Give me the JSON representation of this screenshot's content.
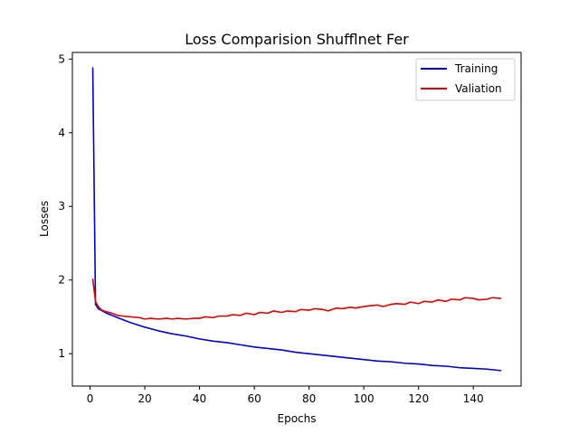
{
  "chart_data": {
    "type": "line",
    "title": "Loss Comparision Shufflnet Fer",
    "xlabel": "Epochs",
    "ylabel": "Losses",
    "xlim": [
      -6.45,
      157.45
    ],
    "ylim": [
      0.56,
      5.09
    ],
    "xticks": [
      0,
      20,
      40,
      60,
      80,
      100,
      120,
      140
    ],
    "yticks": [
      1,
      2,
      3,
      4,
      5
    ],
    "grid": false,
    "legend_position": "top-right",
    "series": [
      {
        "name": "Training",
        "color": "#0000cc",
        "x": [
          1,
          2,
          3,
          4,
          5,
          6,
          8,
          10,
          15,
          20,
          25,
          30,
          35,
          40,
          45,
          50,
          55,
          60,
          65,
          70,
          75,
          80,
          85,
          90,
          95,
          100,
          105,
          110,
          115,
          120,
          125,
          130,
          135,
          140,
          145,
          150
        ],
        "y": [
          4.88,
          1.67,
          1.61,
          1.59,
          1.57,
          1.55,
          1.52,
          1.49,
          1.42,
          1.36,
          1.31,
          1.27,
          1.24,
          1.2,
          1.17,
          1.15,
          1.12,
          1.09,
          1.07,
          1.05,
          1.02,
          1.0,
          0.98,
          0.96,
          0.94,
          0.92,
          0.9,
          0.89,
          0.87,
          0.86,
          0.84,
          0.83,
          0.81,
          0.8,
          0.79,
          0.77
        ]
      },
      {
        "name": "Valiation",
        "color": "#dd0000",
        "x": [
          1,
          2,
          3,
          4,
          5,
          6,
          8,
          10,
          12,
          15,
          18,
          20,
          22,
          25,
          28,
          30,
          32,
          35,
          38,
          40,
          42,
          45,
          47,
          50,
          52,
          55,
          57,
          60,
          62,
          65,
          67,
          70,
          72,
          75,
          77,
          80,
          82,
          85,
          87,
          90,
          92,
          95,
          97,
          100,
          102,
          105,
          107,
          110,
          112,
          115,
          117,
          120,
          122,
          125,
          127,
          130,
          132,
          135,
          137,
          140,
          142,
          145,
          147,
          150
        ],
        "y": [
          2.01,
          1.71,
          1.64,
          1.6,
          1.58,
          1.57,
          1.55,
          1.52,
          1.51,
          1.5,
          1.49,
          1.47,
          1.48,
          1.47,
          1.48,
          1.47,
          1.48,
          1.47,
          1.48,
          1.48,
          1.5,
          1.49,
          1.51,
          1.51,
          1.53,
          1.52,
          1.55,
          1.53,
          1.56,
          1.55,
          1.58,
          1.56,
          1.58,
          1.57,
          1.6,
          1.59,
          1.61,
          1.6,
          1.58,
          1.62,
          1.61,
          1.63,
          1.62,
          1.64,
          1.65,
          1.66,
          1.64,
          1.67,
          1.68,
          1.67,
          1.7,
          1.68,
          1.71,
          1.7,
          1.73,
          1.71,
          1.74,
          1.73,
          1.76,
          1.75,
          1.73,
          1.74,
          1.76,
          1.75
        ]
      }
    ]
  }
}
